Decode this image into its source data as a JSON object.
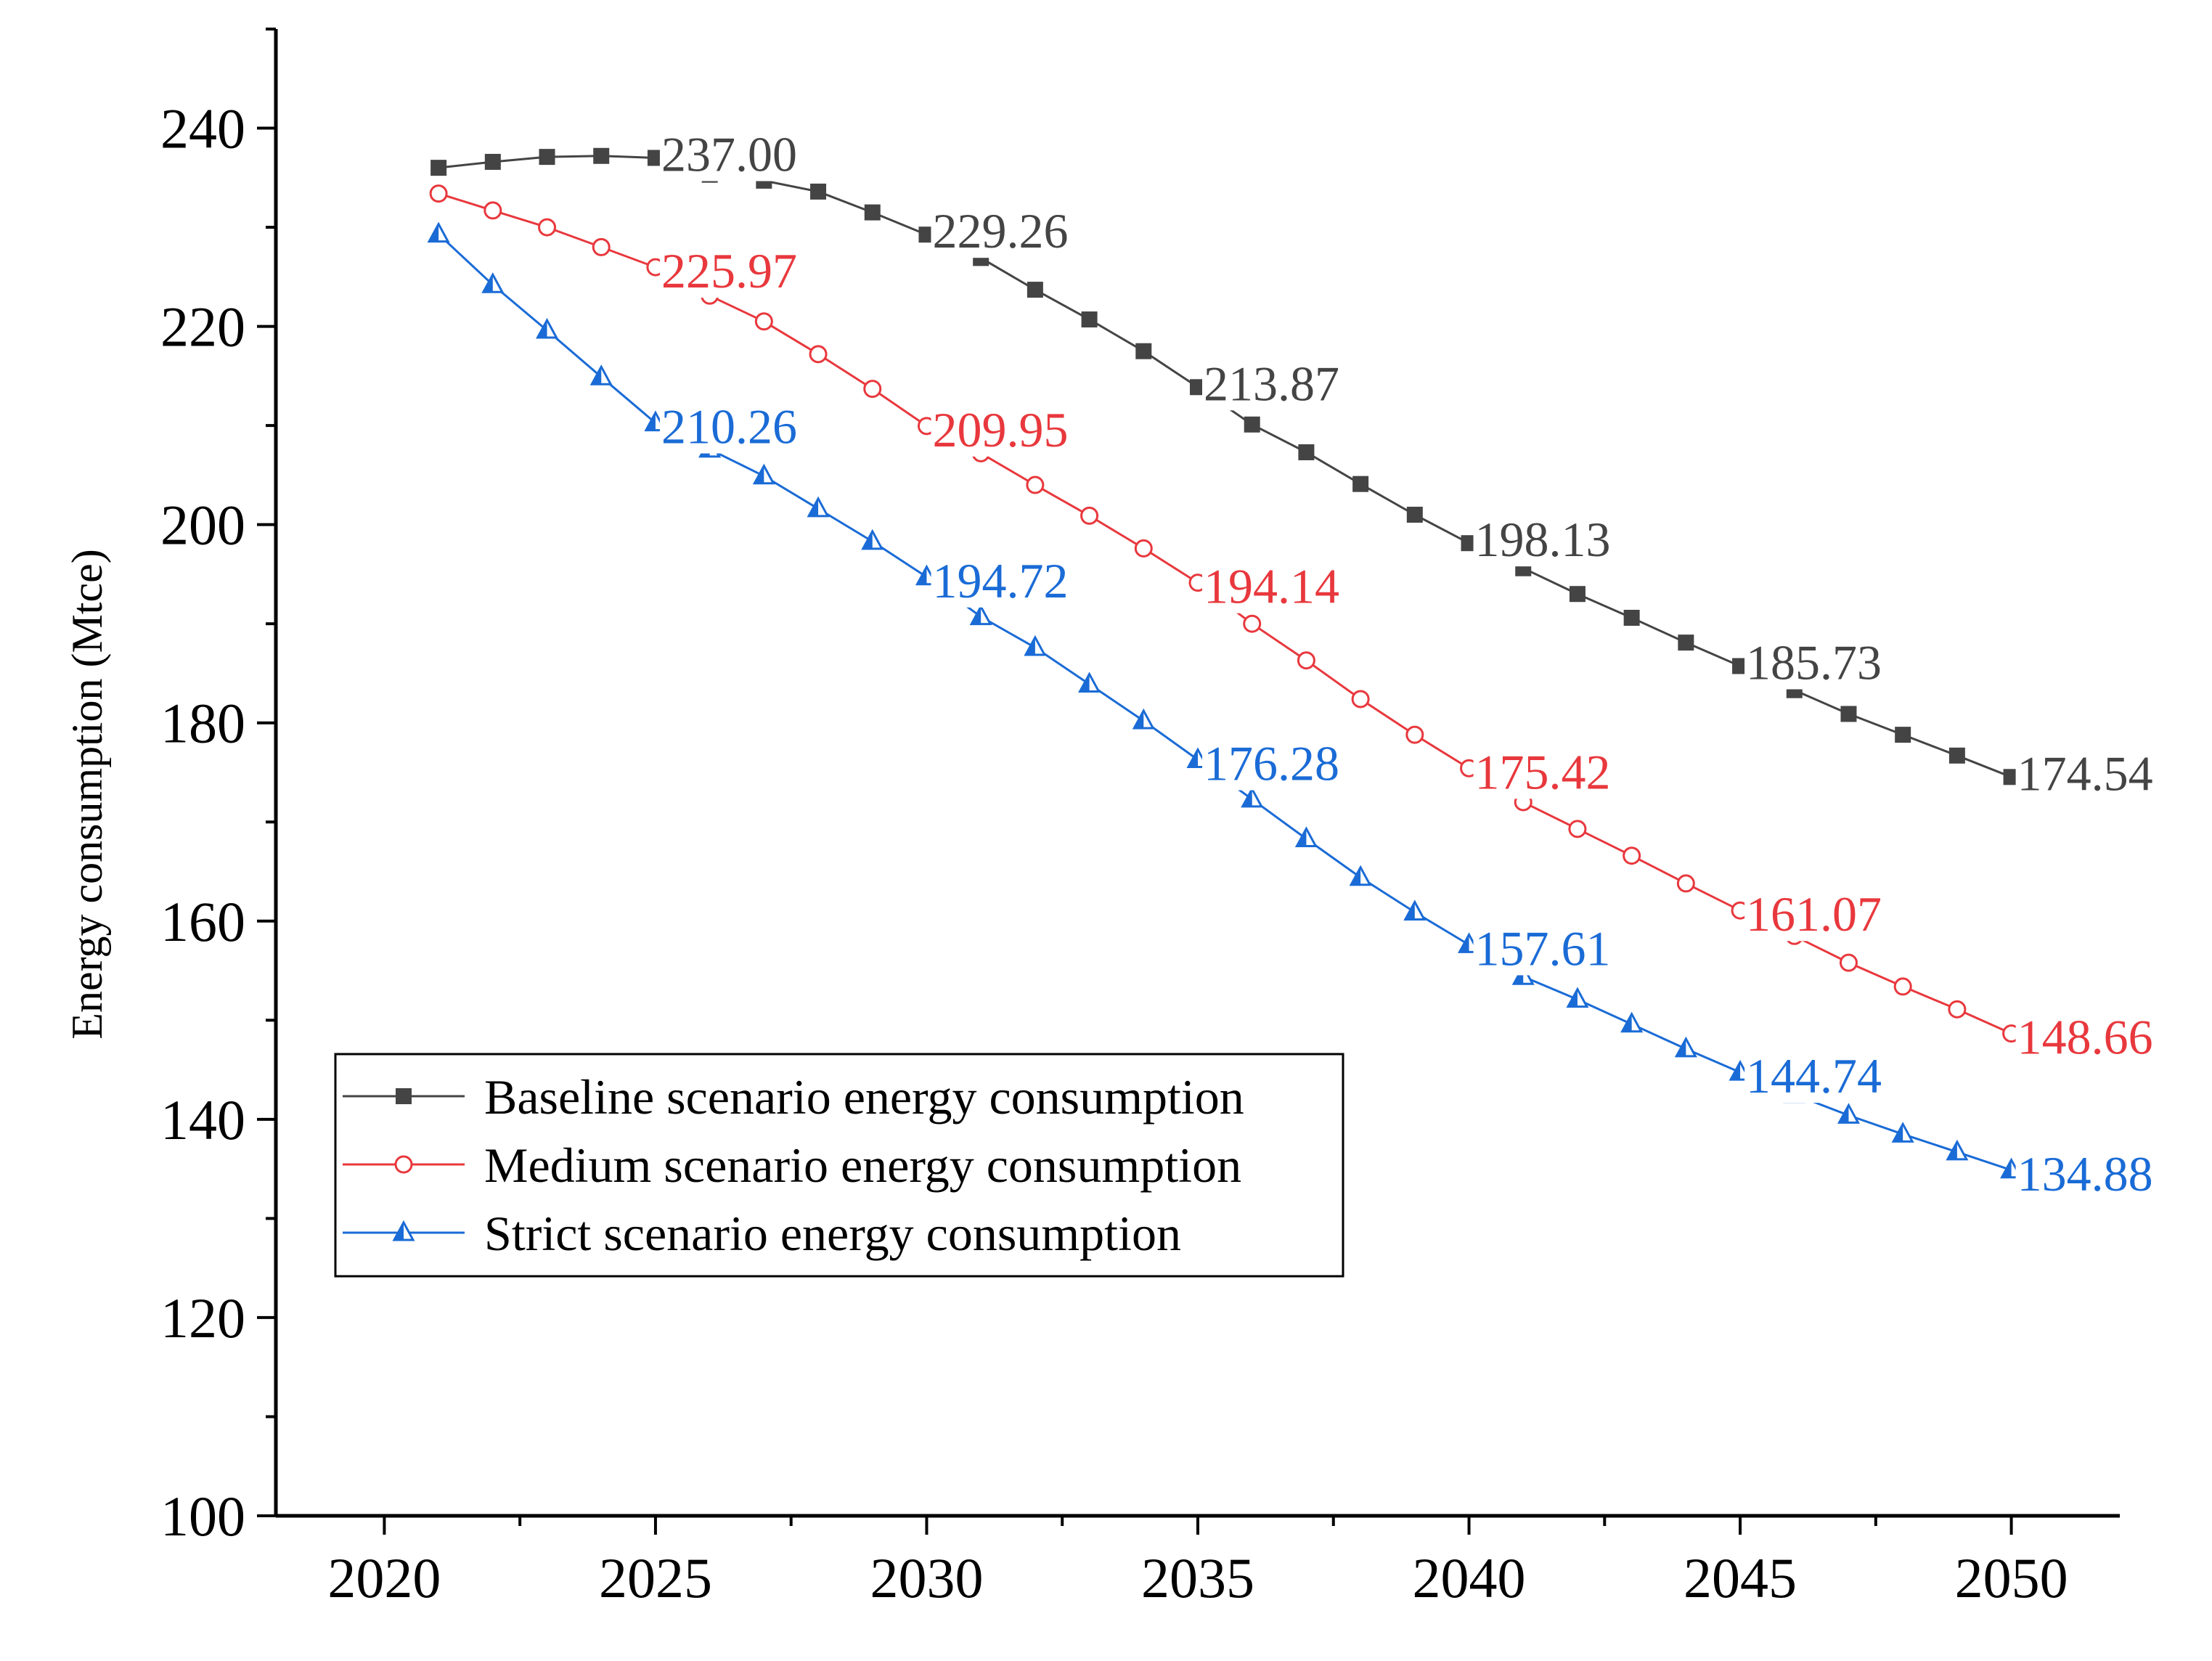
{
  "chart_data": {
    "type": "line",
    "title": "",
    "xlabel": "",
    "ylabel": "Energy consumption (Mtce)",
    "xlim": [
      2018,
      2052
    ],
    "ylim": [
      100,
      250
    ],
    "xticks": [
      2020,
      2025,
      2030,
      2035,
      2040,
      2045,
      2050
    ],
    "xtick_labels": [
      "2020",
      "2025",
      "2030",
      "2035",
      "2040",
      "2045",
      "2050"
    ],
    "yticks": [
      100,
      120,
      140,
      160,
      180,
      200,
      220,
      240
    ],
    "ytick_labels": [
      "100",
      "120",
      "140",
      "160",
      "180",
      "200",
      "220",
      "240"
    ],
    "grid": false,
    "legend_position": "lower-left",
    "x": [
      2021,
      2022,
      2023,
      2024,
      2025,
      2026,
      2027,
      2028,
      2029,
      2030,
      2031,
      2032,
      2033,
      2034,
      2035,
      2036,
      2037,
      2038,
      2039,
      2040,
      2041,
      2042,
      2043,
      2044,
      2045,
      2046,
      2047,
      2048,
      2049,
      2050
    ],
    "series": [
      {
        "name": "Baseline scenario energy consumption",
        "color": "#444444",
        "marker": "square-filled",
        "values": [
          236.0,
          236.6,
          237.1,
          237.2,
          237.0,
          235.3,
          234.7,
          233.6,
          231.5,
          229.26,
          226.9,
          223.7,
          220.7,
          217.5,
          213.87,
          210.1,
          207.3,
          204.1,
          201.0,
          198.13,
          195.6,
          193.0,
          190.6,
          188.1,
          185.73,
          183.3,
          180.9,
          178.8,
          176.7,
          174.54
        ],
        "labels": [
          {
            "year": 2025,
            "text": "237.00"
          },
          {
            "year": 2030,
            "text": "229.26"
          },
          {
            "year": 2035,
            "text": "213.87"
          },
          {
            "year": 2040,
            "text": "198.13"
          },
          {
            "year": 2045,
            "text": "185.73"
          },
          {
            "year": 2050,
            "text": "174.54"
          }
        ]
      },
      {
        "name": "Medium scenario energy consumption",
        "color": "#e8383d",
        "marker": "circle-open",
        "values": [
          233.4,
          231.7,
          230.0,
          228.0,
          225.97,
          223.1,
          220.5,
          217.2,
          213.7,
          209.95,
          207.2,
          204.0,
          200.9,
          197.6,
          194.14,
          190.0,
          186.3,
          182.4,
          178.8,
          175.42,
          172.0,
          169.3,
          166.6,
          163.8,
          161.07,
          158.5,
          155.8,
          153.4,
          151.1,
          148.66
        ],
        "labels": [
          {
            "year": 2025,
            "text": "225.97"
          },
          {
            "year": 2030,
            "text": "209.95"
          },
          {
            "year": 2035,
            "text": "194.14"
          },
          {
            "year": 2040,
            "text": "175.42"
          },
          {
            "year": 2045,
            "text": "161.07"
          },
          {
            "year": 2050,
            "text": "148.66"
          }
        ]
      },
      {
        "name": "Strict scenario energy consumption",
        "color": "#1a6bd6",
        "marker": "triangle-half",
        "values": [
          229.3,
          224.2,
          219.6,
          214.9,
          210.26,
          207.6,
          204.9,
          201.6,
          198.3,
          194.72,
          190.7,
          187.6,
          183.9,
          180.2,
          176.28,
          172.3,
          168.3,
          164.4,
          160.9,
          157.61,
          154.4,
          152.1,
          149.6,
          147.1,
          144.74,
          142.5,
          140.4,
          138.5,
          136.7,
          134.88
        ],
        "labels": [
          {
            "year": 2025,
            "text": "210.26"
          },
          {
            "year": 2030,
            "text": "194.72"
          },
          {
            "year": 2035,
            "text": "176.28"
          },
          {
            "year": 2040,
            "text": "157.61"
          },
          {
            "year": 2045,
            "text": "144.74"
          },
          {
            "year": 2050,
            "text": "134.88"
          }
        ]
      }
    ]
  }
}
